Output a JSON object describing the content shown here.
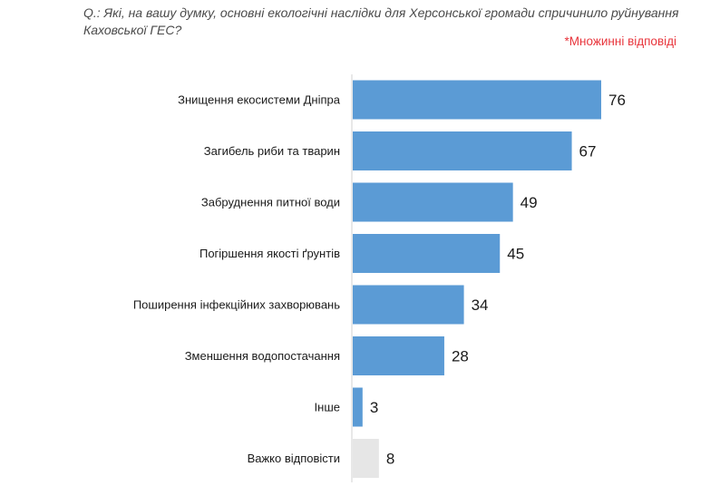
{
  "question": "Q.: Які, на вашу думку, основні екологічні наслідки для Херсонської громади спричинило руйнування Каховської ГЕС?",
  "note": "*Множинні відповіді",
  "colors": {
    "bar": "#5b9bd5",
    "bar_other": "#e6e6e6",
    "question": "#4a4a4a",
    "note": "#e8343b"
  },
  "chart_data": {
    "type": "bar",
    "orientation": "horizontal",
    "categories": [
      "Знищення екосистеми Дніпра",
      "Загибель риби та тварин",
      "Забруднення питної води",
      "Погіршення якості ґрунтів",
      "Поширення інфекційних захворювань",
      "Зменшення водопостачання",
      "Інше",
      "Важко відповісти"
    ],
    "values": [
      76,
      67,
      49,
      45,
      34,
      28,
      3,
      8
    ],
    "bar_colors": [
      "#5b9bd5",
      "#5b9bd5",
      "#5b9bd5",
      "#5b9bd5",
      "#5b9bd5",
      "#5b9bd5",
      "#5b9bd5",
      "#e6e6e6"
    ],
    "title": "",
    "xlabel": "",
    "ylabel": "",
    "xlim": [
      0,
      76
    ],
    "grid": false,
    "legend": "none"
  }
}
